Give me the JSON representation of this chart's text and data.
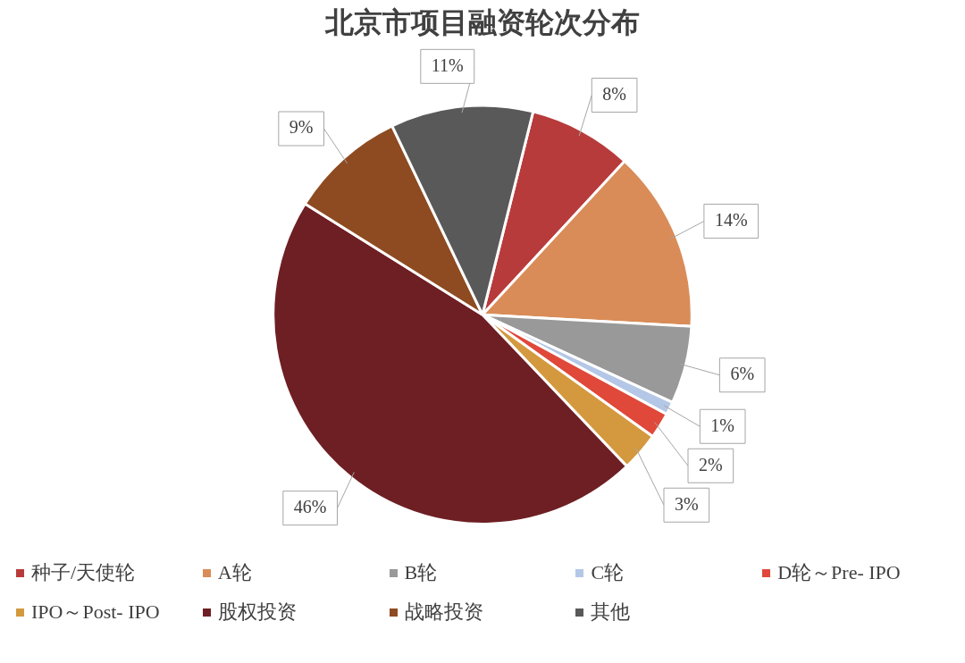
{
  "chart_data": {
    "type": "pie",
    "title": "北京市项目融资轮次分布",
    "categories": [
      "种子/天使轮",
      "A轮",
      "B轮",
      "C轮",
      "D轮～Pre- IPO",
      "IPO～Post- IPO",
      "股权投资",
      "战略投资",
      "其他"
    ],
    "values": [
      8,
      14,
      6,
      1,
      2,
      3,
      46,
      9,
      11
    ],
    "value_labels": [
      "8%",
      "14%",
      "6%",
      "1%",
      "2%",
      "3%",
      "46%",
      "9%",
      "11%"
    ],
    "colors": [
      "#b83b3b",
      "#d98c58",
      "#999999",
      "#b4c7e7",
      "#e0483a",
      "#d4993e",
      "#6e1f23",
      "#8e4b21",
      "#595959"
    ],
    "legend": "bottom"
  }
}
